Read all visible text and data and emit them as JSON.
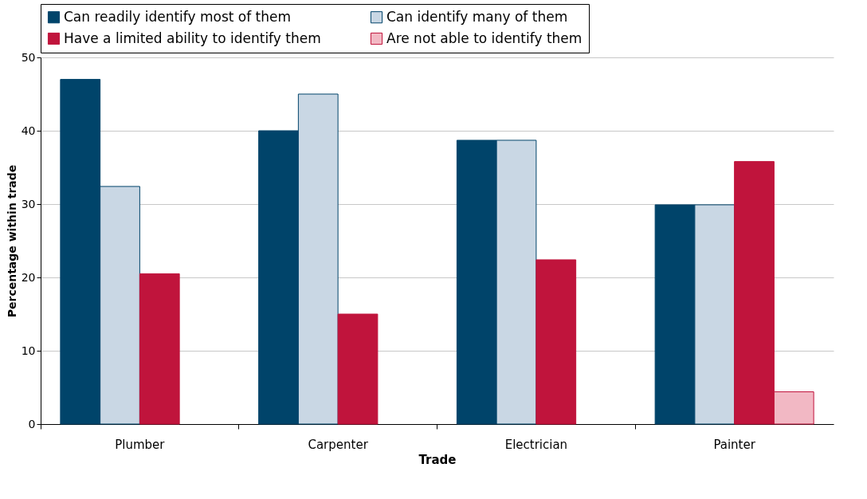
{
  "chart_data": {
    "type": "bar",
    "xlabel": "Trade",
    "ylabel": "Percentage within trade",
    "categories": [
      "Plumber",
      "Carpenter",
      "Electrician",
      "Painter"
    ],
    "series": [
      {
        "name": "Can readily identify most of them",
        "color": "#00446a",
        "values": [
          47,
          40,
          38.7,
          29.9
        ]
      },
      {
        "name": "Can identify many of them",
        "color": "#c9d7e4",
        "values": [
          32.4,
          45,
          38.7,
          29.9
        ]
      },
      {
        "name": "Have a limited ability to identify them",
        "color": "#c0143c",
        "values": [
          20.5,
          15,
          22.4,
          35.8
        ]
      },
      {
        "name": "Are not able to identify them",
        "color": "#f2b8c4",
        "values": [
          null,
          null,
          null,
          4.4
        ]
      }
    ],
    "ylim": [
      0,
      50
    ],
    "yticks": [
      0,
      10,
      20,
      30,
      40,
      50
    ],
    "grid": "y",
    "legend": "top"
  }
}
